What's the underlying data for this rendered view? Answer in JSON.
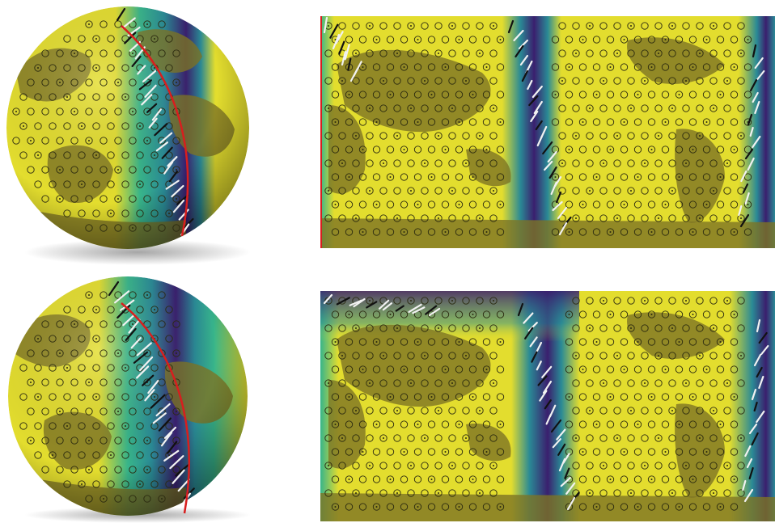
{
  "figure": {
    "panels": [
      {
        "id": "globe-top",
        "kind": "globe"
      },
      {
        "id": "map-top",
        "kind": "equirectangular-map"
      },
      {
        "id": "globe-bottom",
        "kind": "globe"
      },
      {
        "id": "map-bottom",
        "kind": "equirectangular-map"
      }
    ],
    "colors": {
      "field_high": "#e3dd2e",
      "field_mid_green": "#38b58a",
      "field_mid_teal": "#2a8a95",
      "field_low": "#3a1f6e",
      "land_shade": "#7d7424",
      "boundary_line": "#d81e1e",
      "vector_white": "#f2f2f2",
      "vector_black": "#111111",
      "marker_circle": "#2b2a10"
    },
    "icons": [
      "circle-marker-icon",
      "dot-circle-marker-icon",
      "arrow-vector-icon"
    ]
  }
}
